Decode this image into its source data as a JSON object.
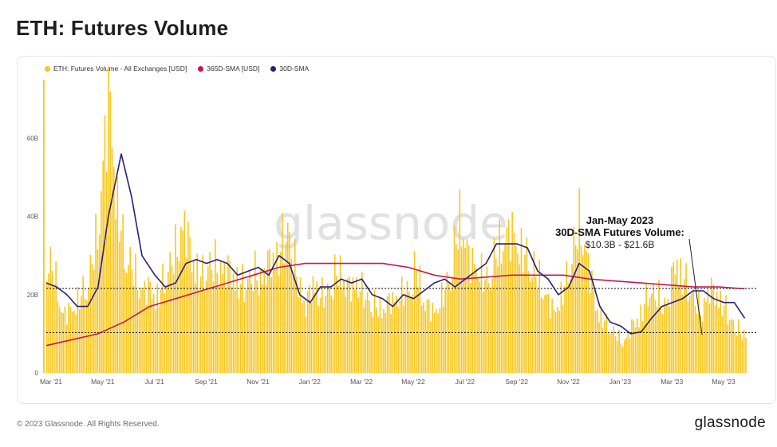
{
  "title": "ETH: Futures Volume",
  "footer": "© 2023 Glassnode. All Rights Reserved.",
  "brand": "glassnode",
  "watermark": "glassnode",
  "colors": {
    "bars": "#f7c71f",
    "sma365": "#c8184e",
    "sma30": "#2a1e7c",
    "axis_text": "#555555"
  },
  "legend": [
    {
      "label": "ETH: Futures Volume - All Exchanges [USD]",
      "color": "#f7c71f"
    },
    {
      "label": "365D-SMA [USD]",
      "color": "#c8184e"
    },
    {
      "label": "30D-SMA",
      "color": "#2a1e7c"
    }
  ],
  "annotation": {
    "line1": "Jan-May 2023",
    "line2": "30D-SMA Futures Volume:",
    "line3": "$10.3B - $21.6B"
  },
  "chart_data": {
    "type": "bar",
    "ylim": [
      0,
      75
    ],
    "yticks": [
      0,
      20,
      40,
      60
    ],
    "ytick_labels": [
      "0",
      "20B",
      "40B",
      "60B"
    ],
    "xtick_labels": [
      "Mar '21",
      "May '21",
      "Jul '21",
      "Sep '21",
      "Nov '21",
      "Jan '22",
      "Mar '22",
      "May '22",
      "Jul '22",
      "Sep '22",
      "Nov '22",
      "Jan '23",
      "Mar '23",
      "May '23"
    ],
    "x_months": [
      0,
      2,
      4,
      6,
      8,
      10,
      12,
      14,
      16,
      18,
      20,
      22,
      24,
      26
    ],
    "x_range_months": [
      0,
      27.2
    ],
    "reference_lines": [
      21.6,
      10.3
    ],
    "series": [
      {
        "name": "ETH: Futures Volume - All Exchanges [USD]",
        "type": "bar",
        "month": [
          0,
          0.3,
          0.6,
          1.0,
          1.3,
          1.6,
          2.0,
          2.2,
          2.4,
          2.5,
          2.7,
          3.0,
          3.3,
          3.6,
          4.0,
          4.3,
          4.6,
          5.0,
          5.3,
          5.6,
          6.0,
          6.3,
          6.6,
          7.0,
          7.3,
          7.6,
          8.0,
          8.3,
          8.6,
          9.0,
          9.3,
          9.6,
          10.0,
          10.3,
          10.6,
          11.0,
          11.3,
          11.6,
          12.0,
          12.3,
          12.6,
          13.0,
          13.3,
          13.6,
          14.0,
          14.3,
          14.6,
          15.0,
          15.3,
          15.6,
          16.0,
          16.3,
          16.6,
          17.0,
          17.3,
          17.6,
          18.0,
          18.3,
          18.6,
          19.0,
          19.3,
          19.6,
          20.0,
          20.3,
          20.6,
          20.9,
          21.2,
          21.5,
          22.0,
          22.3,
          22.6,
          23.0,
          23.3,
          23.6,
          24.0,
          24.3,
          24.6,
          25.0,
          25.3,
          25.6,
          26.0,
          26.3,
          26.6,
          27.0
        ],
        "values": [
          30,
          26,
          15,
          17,
          20,
          24,
          38,
          58,
          72,
          66,
          45,
          32,
          28,
          22,
          22,
          20,
          26,
          32,
          40,
          30,
          25,
          29,
          28,
          27,
          25,
          23,
          26,
          25,
          29,
          32,
          38,
          28,
          17,
          24,
          20,
          23,
          28,
          22,
          24,
          20,
          18,
          17,
          19,
          20,
          22,
          28,
          18,
          16,
          20,
          26,
          42,
          30,
          28,
          24,
          30,
          35,
          37,
          32,
          30,
          25,
          20,
          16,
          22,
          31,
          40,
          30,
          18,
          14,
          10,
          8,
          12,
          16,
          22,
          20,
          18,
          30,
          25,
          20,
          16,
          22,
          20,
          16,
          12,
          10
        ]
      },
      {
        "name": "365D-SMA [USD]",
        "type": "line",
        "month": [
          0,
          1,
          2,
          3,
          4,
          5,
          6,
          7,
          8,
          9,
          10,
          11,
          12,
          13,
          14,
          15,
          16,
          17,
          18,
          19,
          20,
          21,
          22,
          23,
          24,
          25,
          26,
          27
        ],
        "values": [
          7,
          8.5,
          10,
          13,
          17,
          19,
          21,
          23,
          25,
          27,
          28,
          28,
          28,
          28,
          27,
          25,
          24,
          24.5,
          25,
          25,
          25,
          24,
          23.5,
          23,
          22.5,
          22,
          22,
          21.5
        ]
      },
      {
        "name": "30D-SMA",
        "type": "line",
        "month": [
          0,
          0.4,
          0.8,
          1.2,
          1.6,
          2.0,
          2.4,
          2.9,
          3.3,
          3.7,
          4.2,
          4.6,
          5.0,
          5.4,
          5.8,
          6.2,
          6.6,
          7.0,
          7.4,
          7.8,
          8.2,
          8.6,
          9.0,
          9.4,
          9.8,
          10.2,
          10.6,
          11.0,
          11.4,
          11.8,
          12.2,
          12.6,
          13.0,
          13.4,
          13.8,
          14.2,
          14.6,
          15.0,
          15.4,
          15.8,
          16.2,
          16.6,
          17.0,
          17.4,
          17.8,
          18.2,
          18.6,
          19.0,
          19.4,
          19.8,
          20.2,
          20.6,
          21.0,
          21.4,
          21.8,
          22.2,
          22.6,
          23.0,
          23.4,
          23.8,
          24.2,
          24.6,
          25.0,
          25.4,
          25.8,
          26.2,
          26.6,
          27.0
        ],
        "values": [
          23,
          22,
          20,
          17,
          17,
          22,
          40,
          56,
          45,
          30,
          25,
          22,
          23,
          28,
          29,
          28,
          29,
          28,
          25,
          26,
          27,
          25,
          30,
          28,
          20,
          18,
          22,
          22,
          24,
          23,
          24,
          20,
          19,
          17,
          20,
          19,
          21,
          23,
          24,
          22,
          24,
          26,
          28,
          33,
          33,
          33,
          32,
          26,
          24,
          20,
          22,
          28,
          26,
          17,
          13,
          12,
          10,
          10.5,
          14,
          17,
          18,
          19,
          21,
          21,
          19,
          18,
          18,
          14
        ]
      }
    ]
  }
}
